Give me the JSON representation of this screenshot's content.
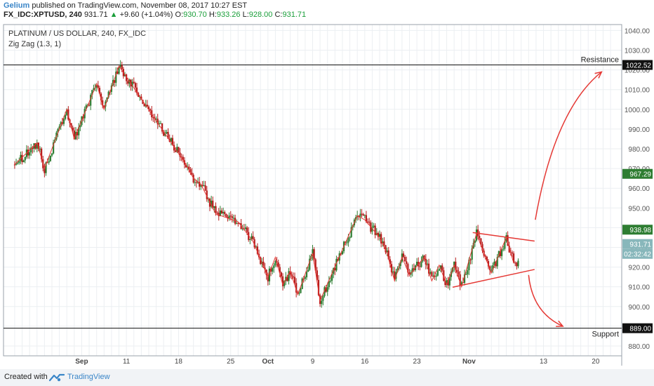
{
  "header": {
    "author": "Gelium",
    "published_text": "published on TradingView.com, November 08, 2017 10:27 EST",
    "symbol_interval": "FX_IDC:XPTUSD, 240",
    "last": "931.71",
    "arrow": "▲",
    "change": "+9.60 (+1.04%)",
    "o_label": "O:",
    "o_value": "930.70",
    "h_label": "H:",
    "h_value": "933.26",
    "l_label": "L:",
    "l_value": "928.00",
    "c_label": "C:",
    "c_value": "931.71"
  },
  "footer": {
    "created_with": "Created with",
    "brand": "TradingView"
  },
  "colors": {
    "up_candle": "#2e7d32",
    "down_candle": "#b71c1c",
    "zigzag": "#e53935",
    "green_tag": "#2e7d32",
    "price_tag": "#88b7bb",
    "black_tag": "#111111",
    "grid": "#eceff2"
  },
  "chart_data": {
    "type": "candlestick",
    "title": "PLATINUM / US DOLLAR, 240, FX_IDC",
    "indicator": "Zig Zag (1.3, 1)",
    "ylim": [
      875,
      1043
    ],
    "y_ticks": [
      880,
      890,
      900,
      910,
      920,
      930,
      940,
      950,
      960,
      970,
      980,
      990,
      1000,
      1010,
      1020,
      1030,
      1040
    ],
    "y_tick_labels": [
      "880.00",
      "890.00",
      "900.00",
      "910.00",
      "920.00",
      "930.00",
      "940.00",
      "950.00",
      "960.00",
      "970.00",
      "980.00",
      "990.00",
      "1000.00",
      "1010.00",
      "1020.00",
      "1030.00",
      "1040.00"
    ],
    "xlim": [
      -1.5,
      81.5
    ],
    "x_ticks": [
      {
        "day": 9,
        "label": "Sep"
      },
      {
        "day": 15,
        "label": "11"
      },
      {
        "day": 22,
        "label": "18"
      },
      {
        "day": 29,
        "label": "25"
      },
      {
        "day": 34,
        "label": "Oct"
      },
      {
        "day": 40,
        "label": "9"
      },
      {
        "day": 47,
        "label": "16"
      },
      {
        "day": 54,
        "label": "23"
      },
      {
        "day": 61,
        "label": "Nov"
      },
      {
        "day": 71,
        "label": "13"
      },
      {
        "day": 78,
        "label": "20"
      }
    ],
    "x_unit": "days since 2017-08-23",
    "zigzag_points": [
      [
        0,
        972
      ],
      [
        3,
        983
      ],
      [
        4,
        970
      ],
      [
        7,
        1000
      ],
      [
        8,
        985
      ],
      [
        11,
        1013
      ],
      [
        12,
        1000
      ],
      [
        14,
        1022
      ],
      [
        23,
        972
      ],
      [
        24,
        965
      ],
      [
        25,
        962
      ],
      [
        27,
        947
      ],
      [
        30,
        943
      ],
      [
        32,
        933
      ],
      [
        34,
        915
      ],
      [
        35,
        925
      ],
      [
        36,
        911
      ],
      [
        37,
        918
      ],
      [
        38,
        906
      ],
      [
        40,
        927
      ],
      [
        41,
        903
      ],
      [
        46,
        946
      ],
      [
        47,
        944
      ],
      [
        49,
        935
      ],
      [
        50,
        927
      ],
      [
        51,
        913
      ],
      [
        52,
        925
      ],
      [
        53,
        916
      ],
      [
        55,
        925
      ],
      [
        56,
        913
      ],
      [
        57,
        921
      ],
      [
        58,
        911
      ],
      [
        59,
        921
      ],
      [
        60,
        910
      ],
      [
        62,
        937
      ],
      [
        64,
        917
      ],
      [
        66,
        935
      ],
      [
        67,
        922
      ]
    ],
    "trendlines": [
      {
        "name": "upper",
        "points": [
          [
            61.5,
            937.5
          ],
          [
            69.8,
            933.2
          ]
        ]
      },
      {
        "name": "lower",
        "points": [
          [
            58.8,
            909.8
          ],
          [
            69.8,
            918.8
          ]
        ]
      }
    ],
    "horizontal_lines": [
      {
        "name": "Resistance",
        "value": 1022.52
      },
      {
        "name": "Support",
        "value": 889.0
      }
    ],
    "price_tags": [
      {
        "value": 1022.52,
        "label": "1022.52",
        "style": "black"
      },
      {
        "value": 967.29,
        "label": "967.29",
        "style": "green"
      },
      {
        "value": 938.98,
        "label": "938.98",
        "style": "green"
      },
      {
        "value": 931.71,
        "label": "931.71",
        "style": "price"
      },
      {
        "value": 926.7,
        "label": "02:32:42",
        "style": "price"
      },
      {
        "value": 889.0,
        "label": "889.00",
        "style": "black"
      }
    ],
    "projection_arrows": [
      {
        "name": "up",
        "from": [
          69.9,
          944
        ],
        "ctrl": [
          72.5,
          1000
        ],
        "to": [
          78.8,
          1019
        ]
      },
      {
        "name": "down",
        "from": [
          69.0,
          916
        ],
        "ctrl": [
          69.5,
          897
        ],
        "to": [
          73.6,
          890
        ]
      }
    ]
  }
}
